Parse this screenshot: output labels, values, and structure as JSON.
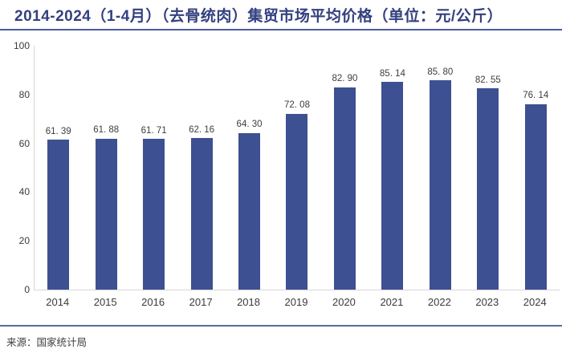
{
  "page": {
    "title": "2014-2024（1-4月）（去骨统肉）集贸市场平均价格（单位：元/公斤）",
    "source": "来源：国家统计局"
  },
  "colors": {
    "title_text": "#33407f",
    "title_rule": "#4b5a9e",
    "source_rule": "#5a6a9e",
    "bar": "#3d5091",
    "axis_line": "#d6d6d6",
    "tick_label": "#3b3b3b",
    "value_label": "#3d3d3d"
  },
  "chart_data": {
    "type": "bar",
    "title": "2014-2024（1-4月）（去骨统肉）集贸市场平均价格（单位：元/公斤）",
    "categories": [
      "2014",
      "2015",
      "2016",
      "2017",
      "2018",
      "2019",
      "2020",
      "2021",
      "2022",
      "2023",
      "2024"
    ],
    "values": [
      61.39,
      61.88,
      61.71,
      62.16,
      64.3,
      72.08,
      82.9,
      85.14,
      85.8,
      82.55,
      76.14
    ],
    "value_labels": [
      "61. 39",
      "61. 88",
      "61. 71",
      "62. 16",
      "64. 30",
      "72. 08",
      "82. 90",
      "85. 14",
      "85. 80",
      "82. 55",
      "76. 14"
    ],
    "xlabel": "",
    "ylabel": "",
    "ylim": [
      0,
      100
    ],
    "yticks": [
      0,
      20,
      40,
      60,
      80,
      100
    ],
    "grid": false,
    "legend": "none",
    "bar_color": "#3d5091",
    "source": "来源：国家统计局"
  }
}
